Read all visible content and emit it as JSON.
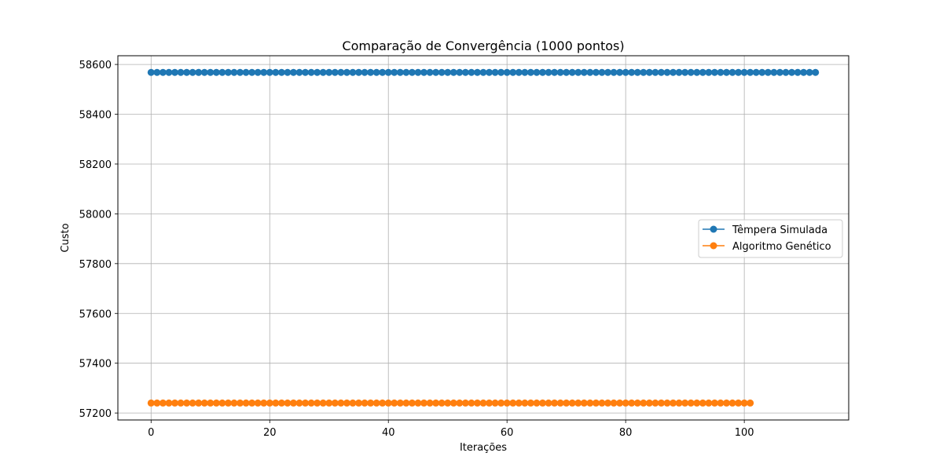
{
  "chart_data": {
    "type": "line",
    "title": "Comparação de Convergência (1000 pontos)",
    "xlabel": "Iterações",
    "ylabel": "Custo",
    "xlim": [
      -5.6,
      117.6
    ],
    "ylim": [
      57172,
      58635
    ],
    "xticks": [
      0,
      20,
      40,
      60,
      80,
      100
    ],
    "yticks": [
      57200,
      57400,
      57600,
      57800,
      58000,
      58200,
      58400,
      58600
    ],
    "grid": true,
    "legend_position": "center-right",
    "series": [
      {
        "name": "Têmpera Simulada",
        "color": "#1f77b4",
        "marker": "circle",
        "x_start": 0,
        "x_end": 112,
        "value": 58568
      },
      {
        "name": "Algoritmo Genético",
        "color": "#ff7f0e",
        "marker": "circle",
        "x_start": 0,
        "x_end": 101,
        "value": 57240
      }
    ]
  }
}
